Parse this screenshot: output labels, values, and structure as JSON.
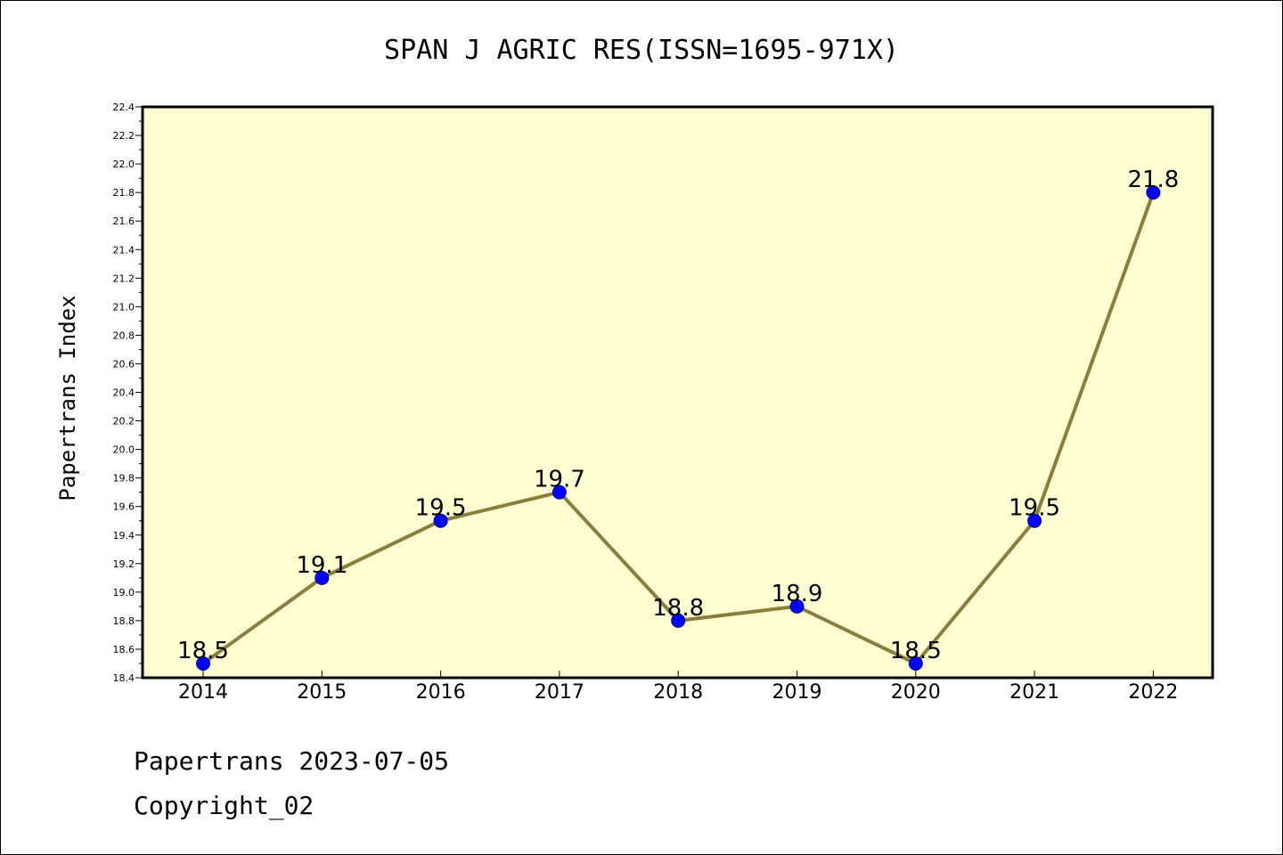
{
  "chart_data": {
    "type": "line",
    "title": "SPAN J AGRIC RES(ISSN=1695-971X)",
    "xlabel": "",
    "ylabel": "Papertrans Index",
    "categories": [
      "2014",
      "2015",
      "2016",
      "2017",
      "2018",
      "2019",
      "2020",
      "2021",
      "2022"
    ],
    "values": [
      18.5,
      19.1,
      19.5,
      19.7,
      18.8,
      18.9,
      18.5,
      19.5,
      21.8
    ],
    "data_labels": [
      "18.5",
      "19.1",
      "19.5",
      "19.7",
      "18.8",
      "18.9",
      "18.5",
      "19.5",
      "21.8"
    ],
    "ylim": [
      18.4,
      22.4
    ],
    "yticks": [
      "18.4",
      "18.6",
      "18.8",
      "19.0",
      "19.2",
      "19.4",
      "19.6",
      "19.8",
      "20.0",
      "20.2",
      "20.4",
      "20.6",
      "20.8",
      "21.0",
      "21.2",
      "21.4",
      "21.6",
      "21.8",
      "22.0",
      "22.2",
      "22.4"
    ],
    "grid": false,
    "colors": {
      "plot_background": "#ffffd2",
      "line": "#8b7d3a",
      "marker": "#0000ff"
    }
  },
  "footer": {
    "line1": "Papertrans 2023-07-05",
    "line2": "Copyright_02"
  }
}
